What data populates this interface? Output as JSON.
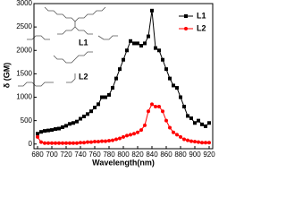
{
  "chart_data": {
    "type": "line",
    "x_label": "Wavelength(nm)",
    "y_label": "δ (GM)",
    "x": [
      680,
      685,
      690,
      695,
      700,
      705,
      710,
      715,
      720,
      725,
      730,
      735,
      740,
      745,
      750,
      755,
      760,
      765,
      770,
      775,
      780,
      785,
      790,
      795,
      800,
      805,
      810,
      815,
      820,
      825,
      830,
      835,
      840,
      845,
      850,
      855,
      860,
      865,
      870,
      875,
      880,
      885,
      890,
      895,
      900,
      905,
      910,
      915,
      920
    ],
    "series": [
      {
        "name": "L1",
        "color": "#000000",
        "marker": "square",
        "values": [
          220,
          260,
          280,
          290,
          300,
          320,
          330,
          360,
          390,
          430,
          450,
          480,
          540,
          590,
          640,
          700,
          780,
          850,
          1000,
          1000,
          1050,
          1200,
          1400,
          1600,
          1800,
          2000,
          2200,
          2150,
          2150,
          2100,
          2150,
          2300,
          2850,
          2050,
          2000,
          1800,
          1600,
          1400,
          1250,
          1200,
          1000,
          800,
          600,
          550,
          450,
          500,
          420,
          380,
          450
        ]
      },
      {
        "name": "L2",
        "color": "#ff0000",
        "marker": "circle",
        "values": [
          150,
          40,
          20,
          20,
          20,
          20,
          20,
          20,
          20,
          20,
          20,
          20,
          30,
          30,
          40,
          40,
          50,
          50,
          60,
          60,
          70,
          80,
          100,
          120,
          150,
          180,
          200,
          220,
          250,
          300,
          400,
          700,
          850,
          800,
          800,
          700,
          500,
          350,
          250,
          200,
          150,
          100,
          80,
          60,
          50,
          40,
          30,
          30,
          30
        ]
      }
    ],
    "xlim": [
      675,
      925
    ],
    "xticks": [
      680,
      700,
      720,
      740,
      760,
      780,
      800,
      820,
      840,
      860,
      880,
      900,
      920
    ],
    "ylim": [
      -100,
      3000
    ],
    "yticks": [
      0,
      500,
      1000,
      1500,
      2000,
      2500,
      3000
    ],
    "legend": "upper right"
  }
}
